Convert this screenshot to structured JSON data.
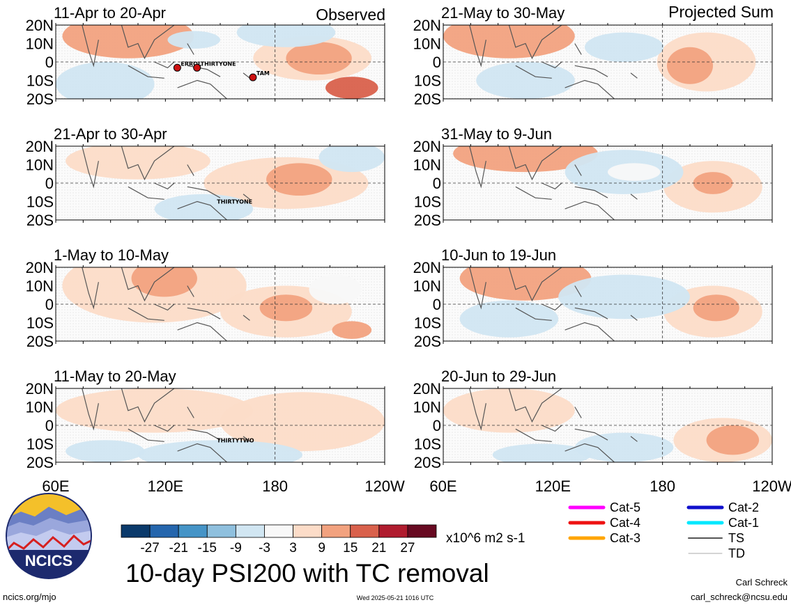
{
  "header": {
    "observed_label": "Observed",
    "projected_label": "Projected Sum"
  },
  "panels": [
    {
      "title": "11-Apr to 20-Apr",
      "column": "observed",
      "row": 0,
      "tc_labels": [
        "ERROL",
        "THIRTYONE",
        "TAM"
      ]
    },
    {
      "title": "21-Apr to 30-Apr",
      "column": "observed",
      "row": 1,
      "tc_labels": [
        "THIRTYONE"
      ]
    },
    {
      "title": "1-May to 10-May",
      "column": "observed",
      "row": 2,
      "tc_labels": []
    },
    {
      "title": "11-May to 20-May",
      "column": "observed",
      "row": 3,
      "tc_labels": [
        "THIRTYTWO"
      ]
    },
    {
      "title": "21-May to 30-May",
      "column": "projected",
      "row": 0,
      "tc_labels": []
    },
    {
      "title": "31-May to 9-Jun",
      "column": "projected",
      "row": 1,
      "tc_labels": []
    },
    {
      "title": "10-Jun to 19-Jun",
      "column": "projected",
      "row": 2,
      "tc_labels": []
    },
    {
      "title": "20-Jun to 29-Jun",
      "column": "projected",
      "row": 3,
      "tc_labels": []
    }
  ],
  "lat_labels": [
    "20N",
    "10N",
    "0",
    "10S",
    "20S"
  ],
  "lon_labels": [
    "60E",
    "120E",
    "180",
    "120W"
  ],
  "colorbar": {
    "colors": [
      "#0b3a6b",
      "#2566ad",
      "#4594c7",
      "#8fc0de",
      "#d1e6f2",
      "#f8f8f8",
      "#fcdcc8",
      "#f2a27f",
      "#d9614c",
      "#b01c2f",
      "#680a22"
    ],
    "tick_labels": [
      "-27",
      "-21",
      "-15",
      "-9",
      "-3",
      "3",
      "9",
      "15",
      "21",
      "27"
    ],
    "units": "x10^6 m2 s-1"
  },
  "legend": {
    "items": [
      {
        "label": "Cat-5",
        "color": "#ff00ff"
      },
      {
        "label": "Cat-4",
        "color": "#ee1111"
      },
      {
        "label": "Cat-3",
        "color": "#ffa500"
      },
      {
        "label": "Cat-2",
        "color": "#1010cc"
      },
      {
        "label": "Cat-1",
        "color": "#00e8ff"
      },
      {
        "label": "TS",
        "color": "#555555"
      },
      {
        "label": "TD",
        "color": "#aaaaaa"
      }
    ]
  },
  "title": "10-day PSI200 with TC removal",
  "logo_text": "NCICS",
  "footer": {
    "url": "ncics.org/mjo",
    "timestamp": "Wed 2025-05-21 1016 UTC",
    "author": "Carl Schreck",
    "email": "carl_schreck@ncsu.edu"
  }
}
